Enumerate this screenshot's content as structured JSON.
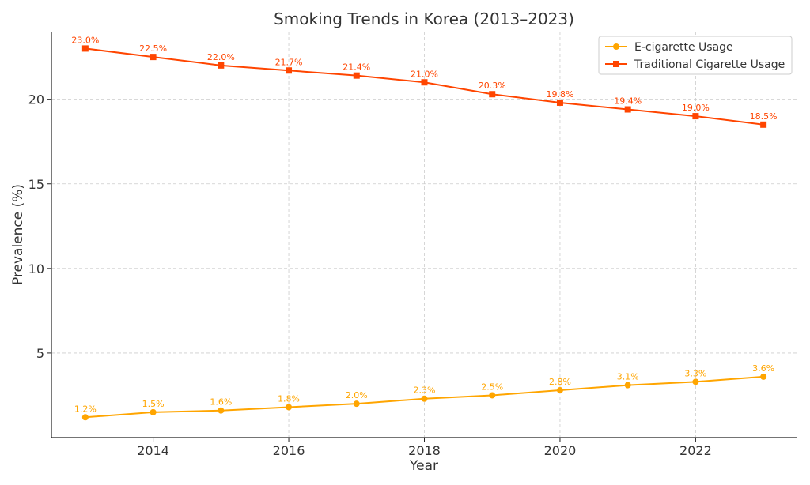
{
  "chart_data": {
    "type": "line",
    "title": "Smoking Trends in Korea (2013–2023)",
    "xlabel": "Year",
    "ylabel": "Prevalence (%)",
    "x": [
      2013,
      2014,
      2015,
      2016,
      2017,
      2018,
      2019,
      2020,
      2021,
      2022,
      2023
    ],
    "xlim": [
      2012.5,
      2023.5
    ],
    "ylim": [
      0,
      24
    ],
    "xticks": [
      2014,
      2016,
      2018,
      2020,
      2022
    ],
    "yticks": [
      5,
      10,
      15,
      20
    ],
    "grid": true,
    "legend_position": "top-right",
    "series": [
      {
        "name": "E-cigarette Usage",
        "color": "#FFA500",
        "marker": "circle",
        "values": [
          1.2,
          1.5,
          1.6,
          1.8,
          2.0,
          2.3,
          2.5,
          2.8,
          3.1,
          3.3,
          3.6
        ],
        "labels": [
          "1.2%",
          "1.5%",
          "1.6%",
          "1.8%",
          "2.0%",
          "2.3%",
          "2.5%",
          "2.8%",
          "3.1%",
          "3.3%",
          "3.6%"
        ]
      },
      {
        "name": "Traditional Cigarette Usage",
        "color": "#FF4500",
        "marker": "square",
        "values": [
          23.0,
          22.5,
          22.0,
          21.7,
          21.4,
          21.0,
          20.3,
          19.8,
          19.4,
          19.0,
          18.5
        ],
        "labels": [
          "23.0%",
          "22.5%",
          "22.0%",
          "21.7%",
          "21.4%",
          "21.0%",
          "20.3%",
          "19.8%",
          "19.4%",
          "19.0%",
          "18.5%"
        ]
      }
    ]
  }
}
